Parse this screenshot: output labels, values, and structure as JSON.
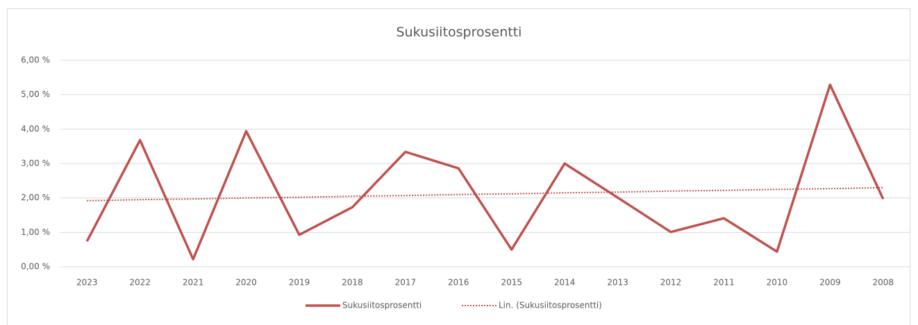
{
  "chart_data": {
    "type": "line",
    "title": "Sukusiitosprosentti",
    "categories": [
      "2023",
      "2022",
      "2021",
      "2020",
      "2019",
      "2018",
      "2017",
      "2016",
      "2015",
      "2014",
      "2013",
      "2012",
      "2011",
      "2010",
      "2009",
      "2008"
    ],
    "series": [
      {
        "name": "Sukusiitosprosentti",
        "color": "#c0504d",
        "style": "solid",
        "values": [
          0.74,
          3.68,
          0.22,
          3.94,
          0.93,
          1.73,
          3.34,
          2.86,
          0.5,
          3.0,
          2.01,
          1.01,
          1.41,
          0.44,
          5.29,
          1.97
        ]
      },
      {
        "name": "Lin. (Sukusiitosprosentti)",
        "color": "#c0504d",
        "style": "dotted",
        "values": [
          1.92,
          1.95,
          1.97,
          2.0,
          2.02,
          2.05,
          2.07,
          2.1,
          2.12,
          2.15,
          2.17,
          2.2,
          2.22,
          2.25,
          2.27,
          2.3
        ]
      }
    ],
    "ylim": [
      0,
      6
    ],
    "yticks": [
      {
        "value": 0,
        "label": "0,00 %"
      },
      {
        "value": 1,
        "label": "1,00 %"
      },
      {
        "value": 2,
        "label": "2,00 %"
      },
      {
        "value": 3,
        "label": "3,00 %"
      },
      {
        "value": 4,
        "label": "4,00 %"
      },
      {
        "value": 5,
        "label": "5,00 %"
      },
      {
        "value": 6,
        "label": "6,00 %"
      }
    ],
    "grid": true,
    "legend": "bottom"
  }
}
